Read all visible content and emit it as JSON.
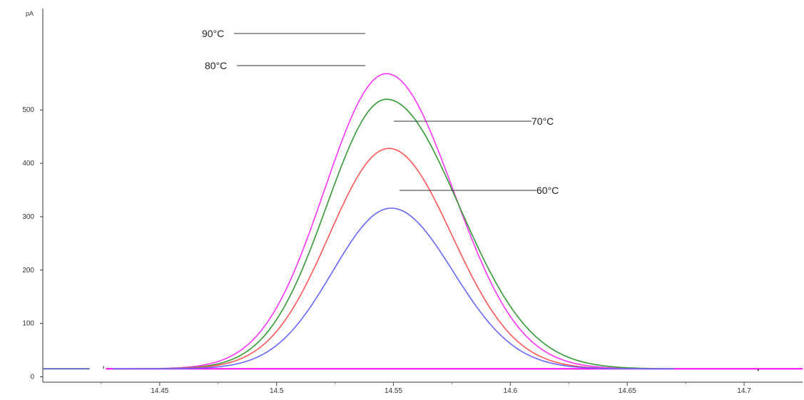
{
  "chart_data": {
    "type": "line",
    "title": "",
    "xlabel": "",
    "ylabel": "pA",
    "xlim": [
      14.4,
      14.725
    ],
    "ylim": [
      -10,
      690
    ],
    "x_ticks": [
      "14.45",
      "14.5",
      "14.55",
      "14.6",
      "14.65",
      "14.7"
    ],
    "y_ticks": [
      "0",
      "100",
      "200",
      "300",
      "400",
      "500"
    ],
    "grid": false,
    "legend": "none",
    "baseline": 15,
    "series": [
      {
        "name": "",
        "label": "90°C",
        "color": "#ff33ff",
        "peak_x": 14.547,
        "peak_y": 568,
        "width_left": 0.0265,
        "width_right": 0.0285
      },
      {
        "name": "",
        "label": "80°C",
        "color": "#339933",
        "peak_x": 14.547,
        "peak_y": 520,
        "width_left": 0.0255,
        "width_right": 0.031
      },
      {
        "name": "",
        "label": "70°C",
        "color": "#ff5555",
        "peak_x": 14.548,
        "peak_y": 428,
        "width_left": 0.0255,
        "width_right": 0.027
      },
      {
        "name": "",
        "label": "60°C",
        "color": "#6666ff",
        "peak_x": 14.549,
        "peak_y": 316,
        "width_left": 0.025,
        "width_right": 0.0265
      }
    ],
    "annotations": [
      {
        "text": "90°C",
        "series": "90°C"
      },
      {
        "text": "80°C",
        "series": "80°C"
      },
      {
        "text": "70°C",
        "series": "70°C"
      },
      {
        "text": "60°C",
        "series": "60°C"
      }
    ]
  }
}
